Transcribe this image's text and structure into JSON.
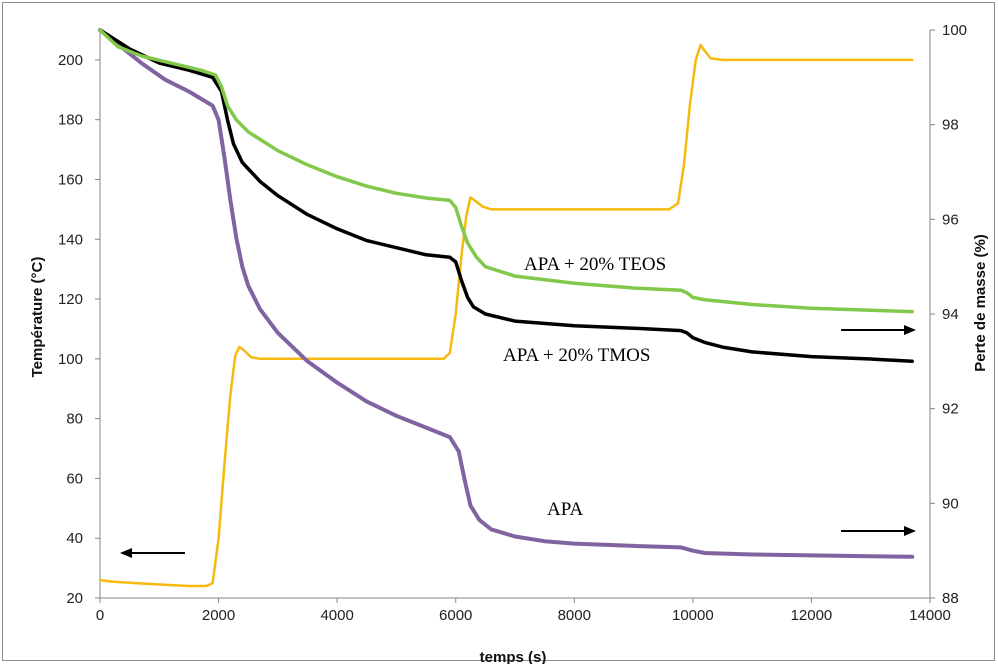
{
  "chart_data": {
    "type": "line",
    "xlabel": "temps (s)",
    "ylabel_left": "Température (°C)",
    "ylabel_right": "Perte de masse (%)",
    "xlim": [
      0,
      14000
    ],
    "ylim_left": [
      20,
      210
    ],
    "ylim_right": [
      88,
      100
    ],
    "x_ticks": [
      "0",
      "2000",
      "4000",
      "6000",
      "8000",
      "10000",
      "12000",
      "14000"
    ],
    "y_left_ticks": [
      "20",
      "40",
      "60",
      "80",
      "100",
      "120",
      "140",
      "160",
      "180",
      "200"
    ],
    "y_right_ticks": [
      "88",
      "90",
      "92",
      "94",
      "96",
      "98",
      "100"
    ],
    "grid": false,
    "colors": {
      "temperature": "#f5b90f",
      "tmos": "#000000",
      "teos": "#82c84b",
      "apa": "#8064a2",
      "axis": "#868686"
    },
    "series": [
      {
        "axis": "left",
        "color": "#f5b90f",
        "x": [
          0,
          200,
          600,
          1000,
          1500,
          1800,
          1900,
          2000,
          2100,
          2200,
          2280,
          2350,
          2420,
          2550,
          2700,
          3000,
          4000,
          5000,
          5800,
          5900,
          6000,
          6100,
          6180,
          6250,
          6320,
          6450,
          6600,
          7000,
          8000,
          9000,
          9600,
          9750,
          9850,
          9950,
          10050,
          10130,
          10200,
          10300,
          10500,
          11000,
          12000,
          13000,
          13700
        ],
        "y": [
          26,
          25.5,
          25,
          24.5,
          24,
          24,
          25,
          40,
          65,
          88,
          101,
          104,
          103,
          100.5,
          100,
          100,
          100,
          100,
          100,
          102,
          115,
          135,
          148,
          154,
          153,
          151,
          150,
          150,
          150,
          150,
          150,
          152,
          165,
          185,
          200,
          205,
          203,
          200.5,
          200,
          200,
          200,
          200,
          200
        ]
      },
      {
        "axis": "right",
        "name": "APA + 20% TMOS",
        "color": "#000000",
        "x": [
          0,
          500,
          1000,
          1500,
          1900,
          2050,
          2150,
          2250,
          2400,
          2700,
          3000,
          3500,
          4000,
          4500,
          5000,
          5500,
          5900,
          6000,
          6100,
          6200,
          6300,
          6500,
          7000,
          8000,
          9000,
          9800,
          9900,
          10000,
          10200,
          10500,
          11000,
          12000,
          13000,
          13700
        ],
        "y": [
          100,
          99.6,
          99.3,
          99.15,
          99.0,
          98.7,
          98.1,
          97.6,
          97.2,
          96.8,
          96.5,
          96.1,
          95.8,
          95.55,
          95.4,
          95.25,
          95.2,
          95.1,
          94.7,
          94.35,
          94.15,
          94.0,
          93.85,
          93.75,
          93.7,
          93.65,
          93.6,
          93.5,
          93.4,
          93.3,
          93.2,
          93.1,
          93.05,
          93.0
        ]
      },
      {
        "axis": "right",
        "name": "APA + 20% TEOS",
        "color": "#82c84b",
        "x": [
          0,
          300,
          700,
          1200,
          1700,
          1950,
          2050,
          2150,
          2300,
          2500,
          3000,
          3500,
          4000,
          4500,
          5000,
          5500,
          5900,
          6000,
          6100,
          6200,
          6350,
          6500,
          7000,
          8000,
          9000,
          9800,
          9900,
          10000,
          10200,
          11000,
          12000,
          13000,
          13700
        ],
        "y": [
          100,
          99.65,
          99.45,
          99.3,
          99.15,
          99.05,
          98.8,
          98.4,
          98.1,
          97.85,
          97.45,
          97.15,
          96.9,
          96.7,
          96.55,
          96.45,
          96.4,
          96.25,
          95.85,
          95.5,
          95.2,
          95.0,
          94.8,
          94.65,
          94.55,
          94.5,
          94.45,
          94.35,
          94.3,
          94.2,
          94.12,
          94.08,
          94.05
        ]
      },
      {
        "axis": "right",
        "name": "APA",
        "color": "#8064a2",
        "x": [
          0,
          300,
          700,
          1100,
          1500,
          1900,
          2000,
          2100,
          2200,
          2300,
          2400,
          2500,
          2700,
          3000,
          3500,
          4000,
          4500,
          5000,
          5500,
          5900,
          6050,
          6150,
          6250,
          6400,
          6600,
          7000,
          7500,
          8000,
          9000,
          9800,
          10000,
          10200,
          11000,
          12000,
          13000,
          13700
        ],
        "y": [
          100,
          99.7,
          99.3,
          98.95,
          98.7,
          98.4,
          98.1,
          97.3,
          96.4,
          95.6,
          95.0,
          94.6,
          94.1,
          93.6,
          93.0,
          92.55,
          92.15,
          91.85,
          91.6,
          91.4,
          91.1,
          90.5,
          89.95,
          89.65,
          89.45,
          89.3,
          89.2,
          89.15,
          89.1,
          89.07,
          89.0,
          88.95,
          88.92,
          88.9,
          88.88,
          88.87
        ]
      }
    ],
    "annotations": {
      "teos": "APA + 20% TEOS",
      "tmos": "APA + 20% TMOS",
      "apa": "APA"
    }
  }
}
